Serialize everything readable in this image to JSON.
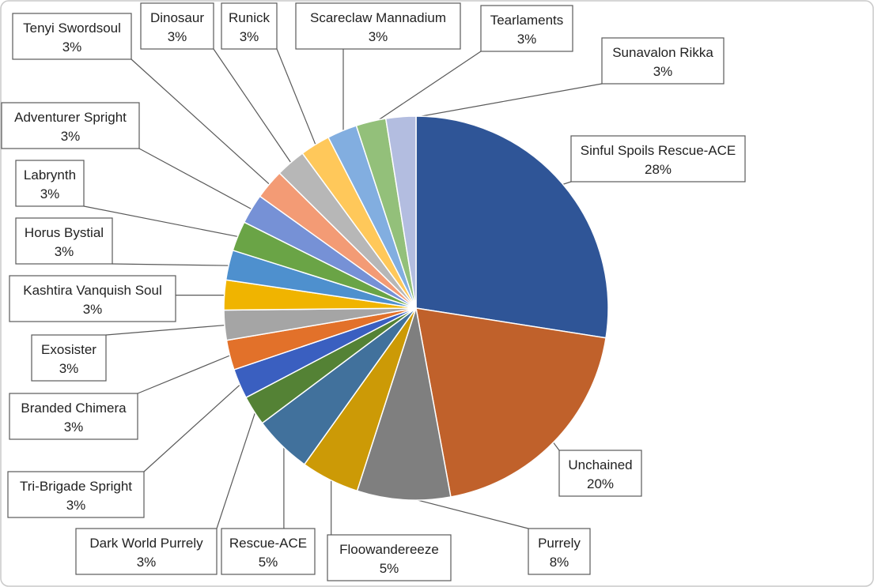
{
  "chart_data": {
    "type": "pie",
    "title": "",
    "slices": [
      {
        "label": "Sinful Spoils Rescue-ACE",
        "value": 28,
        "display": "28%",
        "color": "#2F5597"
      },
      {
        "label": "Unchained",
        "value": 20,
        "display": "20%",
        "color": "#C0612B"
      },
      {
        "label": "Purrely",
        "value": 8,
        "display": "8%",
        "color": "#7F7F7F"
      },
      {
        "label": "Floowandereeze",
        "value": 5,
        "display": "5%",
        "color": "#CC9A06"
      },
      {
        "label": "Rescue-ACE",
        "value": 5,
        "display": "5%",
        "color": "#41719C"
      },
      {
        "label": "Dark World Purrely",
        "value": 2.564,
        "display": "3%",
        "color": "#548235"
      },
      {
        "label": "Tri-Brigade Spright",
        "value": 2.564,
        "display": "3%",
        "color": "#3A5FC0"
      },
      {
        "label": "Branded Chimera",
        "value": 2.564,
        "display": "3%",
        "color": "#E2712A"
      },
      {
        "label": "Exosister",
        "value": 2.564,
        "display": "3%",
        "color": "#A5A5A5"
      },
      {
        "label": "Kashtira Vanquish Soul",
        "value": 2.564,
        "display": "3%",
        "color": "#F0B400"
      },
      {
        "label": "Horus Bystial",
        "value": 2.564,
        "display": "3%",
        "color": "#4E90CE"
      },
      {
        "label": "Labrynth",
        "value": 2.564,
        "display": "3%",
        "color": "#6AA446"
      },
      {
        "label": "Adventurer Spright",
        "value": 2.564,
        "display": "3%",
        "color": "#7691D6"
      },
      {
        "label": "Tenyi Swordsoul",
        "value": 2.564,
        "display": "3%",
        "color": "#F39B75"
      },
      {
        "label": "Dinosaur",
        "value": 2.564,
        "display": "3%",
        "color": "#B7B7B7"
      },
      {
        "label": "Runick",
        "value": 2.564,
        "display": "3%",
        "color": "#FFC85A"
      },
      {
        "label": "Scareclaw Mannadium",
        "value": 2.564,
        "display": "3%",
        "color": "#82AEE0"
      },
      {
        "label": "Tearlaments",
        "value": 2.564,
        "display": "3%",
        "color": "#93C07A"
      },
      {
        "label": "Sunavalon Rikka",
        "value": 2.564,
        "display": "3%",
        "color": "#B3BDE0"
      }
    ],
    "legend": "none",
    "data_labels": "callout boxes with leader lines"
  }
}
